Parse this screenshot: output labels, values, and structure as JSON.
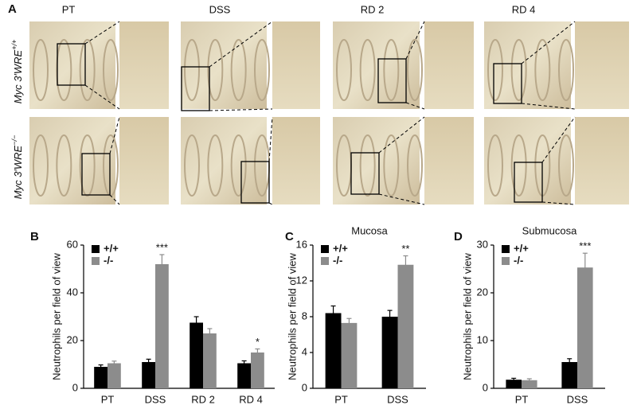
{
  "panel_a": {
    "panel_label": "A",
    "columns": [
      "PT",
      "DSS",
      "RD 2",
      "RD 4"
    ],
    "rows": [
      {
        "gene": "Myc 3′WRE",
        "genotype": "+/+"
      },
      {
        "gene": "Myc 3′WRE",
        "genotype": "−/−"
      }
    ]
  },
  "chart_data": [
    {
      "type": "bar",
      "panel_label": "B",
      "y_label": "Neutrophils per field of view",
      "categories": [
        "PT",
        "DSS",
        "RD 2",
        "RD 4"
      ],
      "series": [
        {
          "name": "+/+",
          "color": "#000000",
          "values": [
            9,
            11,
            27.5,
            10.5
          ],
          "errors": [
            0.8,
            1.2,
            2.5,
            1
          ]
        },
        {
          "name": "-/-",
          "color": "#8c8c8c",
          "values": [
            10.5,
            52,
            23,
            15
          ],
          "errors": [
            0.9,
            4,
            2,
            1.5
          ],
          "annotations": [
            null,
            "***",
            null,
            "*"
          ]
        }
      ],
      "ylim": [
        0,
        60
      ],
      "yticks": [
        0,
        20,
        40,
        60
      ]
    },
    {
      "type": "bar",
      "panel_label": "C",
      "title": "Mucosa",
      "y_label": "Neutrophils per field of view",
      "categories": [
        "PT",
        "DSS"
      ],
      "series": [
        {
          "name": "+/+",
          "color": "#000000",
          "values": [
            8.4,
            8.0
          ],
          "errors": [
            0.8,
            0.7
          ]
        },
        {
          "name": "-/-",
          "color": "#8c8c8c",
          "values": [
            7.3,
            13.8
          ],
          "errors": [
            0.5,
            1.0
          ],
          "annotations": [
            null,
            "**"
          ]
        }
      ],
      "ylim": [
        0,
        16
      ],
      "yticks": [
        0,
        4,
        8,
        12,
        16
      ]
    },
    {
      "type": "bar",
      "panel_label": "D",
      "title": "Submucosa",
      "y_label": "Neutrophils per field of view",
      "categories": [
        "PT",
        "DSS"
      ],
      "series": [
        {
          "name": "+/+",
          "color": "#000000",
          "values": [
            1.8,
            5.5
          ],
          "errors": [
            0.3,
            0.7
          ]
        },
        {
          "name": "-/-",
          "color": "#8c8c8c",
          "values": [
            1.7,
            25.3
          ],
          "errors": [
            0.3,
            3
          ],
          "annotations": [
            null,
            "***"
          ]
        }
      ],
      "ylim": [
        0,
        30
      ],
      "yticks": [
        0,
        10,
        20,
        30
      ]
    }
  ]
}
